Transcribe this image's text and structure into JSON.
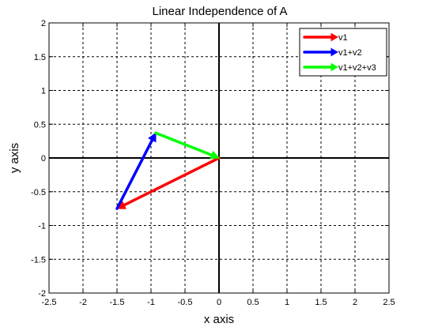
{
  "chart_data": {
    "type": "line",
    "title": "Linear Independence of A",
    "xlabel": "x axis",
    "ylabel": "y axis",
    "xlim": [
      -2.5,
      2.5
    ],
    "ylim": [
      -2,
      2
    ],
    "xticks": [
      -2.5,
      -2,
      -1.5,
      -1,
      -0.5,
      0,
      0.5,
      1,
      1.5,
      2,
      2.5
    ],
    "xtick_labels": [
      "-2.5",
      "-2",
      "-1.5",
      "-1",
      "-0.5",
      "0",
      "0.5",
      "1",
      "1.5",
      "2",
      "2.5"
    ],
    "yticks": [
      -2,
      -1.5,
      -1,
      -0.5,
      0,
      0.5,
      1,
      1.5,
      2
    ],
    "ytick_labels": [
      "-2",
      "-1.5",
      "-1",
      "-0.5",
      "0",
      "0.5",
      "1",
      "1.5",
      "2"
    ],
    "grid": true,
    "legend_position": "top-right",
    "series": [
      {
        "name": "v1",
        "color": "#ff0000",
        "from": [
          0,
          0
        ],
        "to": [
          -1.5,
          -0.75
        ]
      },
      {
        "name": "v1+v2",
        "color": "#0000ff",
        "from": [
          -1.5,
          -0.75
        ],
        "to": [
          -0.93,
          0.37
        ]
      },
      {
        "name": "v1+v2+v3",
        "color": "#00ff00",
        "from": [
          -0.93,
          0.37
        ],
        "to": [
          0,
          0
        ]
      }
    ]
  }
}
